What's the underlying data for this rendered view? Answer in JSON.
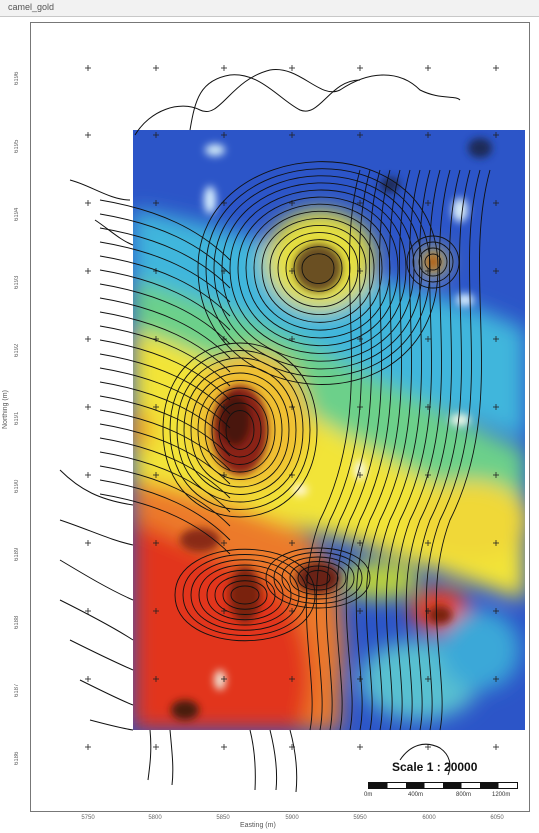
{
  "window": {
    "title": "camel_gold"
  },
  "axes": {
    "x_title": "Easting (m)",
    "y_title": "Northing (m)",
    "y_ticks": [
      "6196",
      "6195",
      "6194",
      "6193",
      "6192",
      "6191",
      "6190",
      "6189",
      "6188",
      "6187",
      "6186"
    ],
    "x_ticks": [
      "5750",
      "5800",
      "5850",
      "5900",
      "5950",
      "6000",
      "6050"
    ]
  },
  "scale": {
    "text": "Scale 1 : 20000",
    "labels": [
      "0m",
      "400m",
      "800m",
      "1200m"
    ]
  },
  "colors": {
    "map_low": "#2850c8",
    "map_mid_low": "#40b0d8",
    "map_mid": "#f0e030",
    "map_high": "#e03020",
    "map_peak": "#502018",
    "contour": "#111111"
  }
}
